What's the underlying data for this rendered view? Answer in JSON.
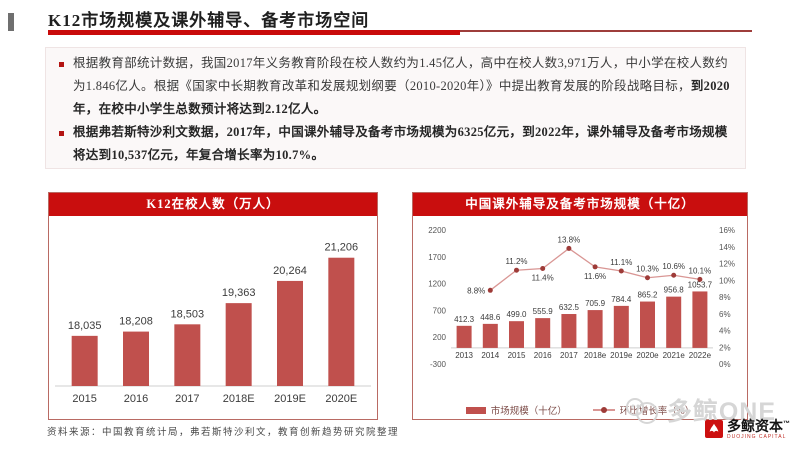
{
  "page": {
    "title": "K12市场规模及课外辅导、备考市场空间",
    "source_note": "资料来源：中国教育统计局，弗若斯特沙利文，教育创新趋势研究院整理",
    "watermark": "多鲸ONE",
    "logo": {
      "name": "多鲸资本",
      "tm": "™",
      "subtitle": "DUOJING CAPITAL"
    }
  },
  "bullets": [
    {
      "normal": "根据教育部统计数据，我国2017年义务教育阶段在校人数约为1.45亿人，高中在校人数3,971万人，中小学在校人数约为1.846亿人。根据《国家中长期教育改革和发展规划纲要（2010-2020年）》中提出教育发展的阶段战略目标，",
      "bold": "到2020年，在校中小学生总数预计将达到2.12亿人。"
    },
    {
      "normal": "",
      "bold": "根据弗若斯特沙利文数据，2017年，中国课外辅导及备考市场规模为6325亿元，到2022年，课外辅导及备考市场规模将达到10,537亿元，年复合增长率为10.7%。"
    }
  ],
  "colors": {
    "header_red": "#c90e0e",
    "bar": "#c0504d",
    "line": "#d99694",
    "marker": "#9e3b38",
    "axis_text": "#555555",
    "label_text": "#3c3c3c"
  },
  "chart_data": [
    {
      "type": "bar",
      "title": "K12在校人数（万人）",
      "categories": [
        "2015",
        "2016",
        "2017",
        "2018E",
        "2019E",
        "2020E"
      ],
      "values": [
        18035,
        18208,
        18503,
        19363,
        20264,
        21206
      ],
      "value_labels": [
        "18,035",
        "18,208",
        "18,503",
        "19,363",
        "20,264",
        "21,206"
      ],
      "ylim": [
        16000,
        21600
      ],
      "grid": false,
      "bar_color": "#c0504d"
    },
    {
      "type": "bar+line",
      "title": "中国课外辅导及备考市场规模（十亿）",
      "categories": [
        "2013",
        "2014",
        "2015",
        "2016",
        "2017",
        "2018e",
        "2019e",
        "2020e",
        "2021e",
        "2022e"
      ],
      "series": [
        {
          "name": "市场规模（十亿）",
          "type": "bar",
          "axis": "left",
          "values": [
            412.3,
            448.6,
            499.0,
            555.9,
            632.5,
            705.9,
            784.4,
            865.2,
            956.8,
            1053.7
          ],
          "labels": [
            "412.3",
            "448.6",
            "499.0",
            "555.9",
            "632.5",
            "705.9",
            "784.4",
            "865.2",
            "956.8",
            "1053.7"
          ]
        },
        {
          "name": "环比增长率（%）",
          "type": "line",
          "axis": "right",
          "values": [
            null,
            8.8,
            11.2,
            11.4,
            13.8,
            11.6,
            11.1,
            10.3,
            10.6,
            10.1
          ],
          "labels": [
            null,
            "8.8%",
            "11.2%",
            "11.4%",
            "13.8%",
            "11.6%",
            "11.1%",
            "10.3%",
            "10.6%",
            "10.1%"
          ],
          "label_pos": [
            null,
            "left",
            "above",
            "below",
            "above",
            "below",
            "above",
            "above",
            "above",
            "above"
          ]
        }
      ],
      "left_axis": {
        "min": -300,
        "max": 2200,
        "ticks": [
          2200,
          1700,
          1200,
          700,
          200,
          -300
        ]
      },
      "right_axis": {
        "min": 0,
        "max": 16,
        "ticks": [
          "16%",
          "14%",
          "12%",
          "10%",
          "8%",
          "6%",
          "4%",
          "2%",
          "0%"
        ]
      },
      "legend": [
        "市场规模（十亿）",
        "环比增长率（%）"
      ],
      "legend_position": "bottom",
      "grid": false
    }
  ]
}
